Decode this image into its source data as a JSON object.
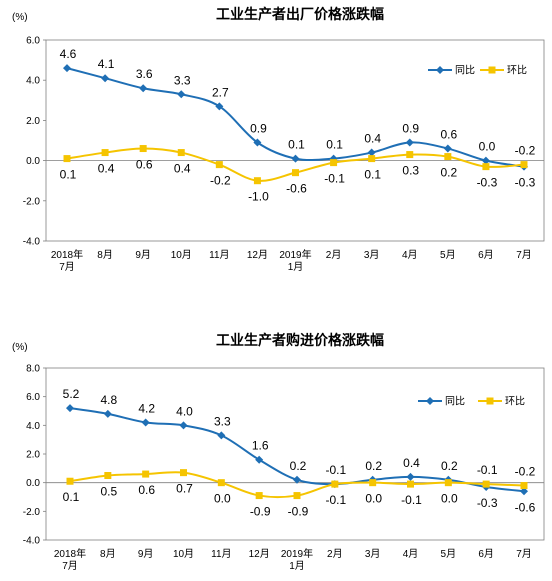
{
  "chart_data": [
    {
      "type": "line",
      "title": "工业生产者出厂价格涨跌幅",
      "ylabel": "(%)",
      "ylim": [
        -4.0,
        6.0
      ],
      "yticks": [
        "6.0",
        "4.0",
        "2.0",
        "0.0",
        "-2.0",
        "-4.0"
      ],
      "categories": [
        "2018年7月",
        "8月",
        "9月",
        "10月",
        "11月",
        "12月",
        "2019年1月",
        "2月",
        "3月",
        "4月",
        "5月",
        "6月",
        "7月"
      ],
      "category_lines": [
        [
          "2018年",
          "7月"
        ],
        [
          "8月"
        ],
        [
          "9月"
        ],
        [
          "10月"
        ],
        [
          "11月"
        ],
        [
          "12月"
        ],
        [
          "2019年",
          "1月"
        ],
        [
          "2月"
        ],
        [
          "3月"
        ],
        [
          "4月"
        ],
        [
          "5月"
        ],
        [
          "6月"
        ],
        [
          "7月"
        ]
      ],
      "legend_position": "top-right",
      "grid": false,
      "series": [
        {
          "name": "同比",
          "color": "#1f6fb5",
          "marker": "diamond",
          "values": [
            4.6,
            4.1,
            3.6,
            3.3,
            2.7,
            0.9,
            0.1,
            0.1,
            0.4,
            0.9,
            0.6,
            0.0,
            -0.3
          ],
          "labels": [
            "4.6",
            "4.1",
            "3.6",
            "3.3",
            "2.7",
            "0.9",
            "0.1",
            "0.1",
            "0.4",
            "0.9",
            "0.6",
            "0.0",
            "-0.3"
          ]
        },
        {
          "name": "环比",
          "color": "#f5c400",
          "marker": "square",
          "values": [
            0.1,
            0.4,
            0.6,
            0.4,
            -0.2,
            -1.0,
            -0.6,
            -0.1,
            0.1,
            0.3,
            0.2,
            -0.3,
            -0.2
          ],
          "labels": [
            "0.1",
            "0.4",
            "0.6",
            "0.4",
            "-0.2",
            "-1.0",
            "-0.6",
            "-0.1",
            "0.1",
            "0.3",
            "0.2",
            "-0.3",
            "-0.2"
          ]
        }
      ]
    },
    {
      "type": "line",
      "title": "工业生产者购进价格涨跌幅",
      "ylabel": "(%)",
      "ylim": [
        -4.0,
        8.0
      ],
      "yticks": [
        "8.0",
        "6.0",
        "4.0",
        "2.0",
        "0.0",
        "-2.0",
        "-4.0"
      ],
      "categories": [
        "2018年7月",
        "8月",
        "9月",
        "10月",
        "11月",
        "12月",
        "2019年1月",
        "2月",
        "3月",
        "4月",
        "5月",
        "6月",
        "7月"
      ],
      "category_lines": [
        [
          "2018年",
          "7月"
        ],
        [
          "8月"
        ],
        [
          "9月"
        ],
        [
          "10月"
        ],
        [
          "11月"
        ],
        [
          "12月"
        ],
        [
          "2019年",
          "1月"
        ],
        [
          "2月"
        ],
        [
          "3月"
        ],
        [
          "4月"
        ],
        [
          "5月"
        ],
        [
          "6月"
        ],
        [
          "7月"
        ]
      ],
      "legend_position": "top-right",
      "grid": false,
      "series": [
        {
          "name": "同比",
          "color": "#1f6fb5",
          "marker": "diamond",
          "values": [
            5.2,
            4.8,
            4.2,
            4.0,
            3.3,
            1.6,
            0.2,
            -0.1,
            0.2,
            0.4,
            0.2,
            -0.3,
            -0.6
          ],
          "labels": [
            "5.2",
            "4.8",
            "4.2",
            "4.0",
            "3.3",
            "1.6",
            "0.2",
            "-0.1",
            "0.2",
            "0.4",
            "0.2",
            "-0.3",
            "-0.6"
          ]
        },
        {
          "name": "环比",
          "color": "#f5c400",
          "marker": "square",
          "values": [
            0.1,
            0.5,
            0.6,
            0.7,
            0.0,
            -0.9,
            -0.9,
            -0.1,
            0.0,
            -0.1,
            0.0,
            -0.1,
            -0.2
          ],
          "labels": [
            "0.1",
            "0.5",
            "0.6",
            "0.7",
            "0.0",
            "-0.9",
            "-0.9",
            "-0.1",
            "0.0",
            "-0.1",
            "0.0",
            "-0.1",
            "-0.2"
          ]
        }
      ]
    }
  ]
}
